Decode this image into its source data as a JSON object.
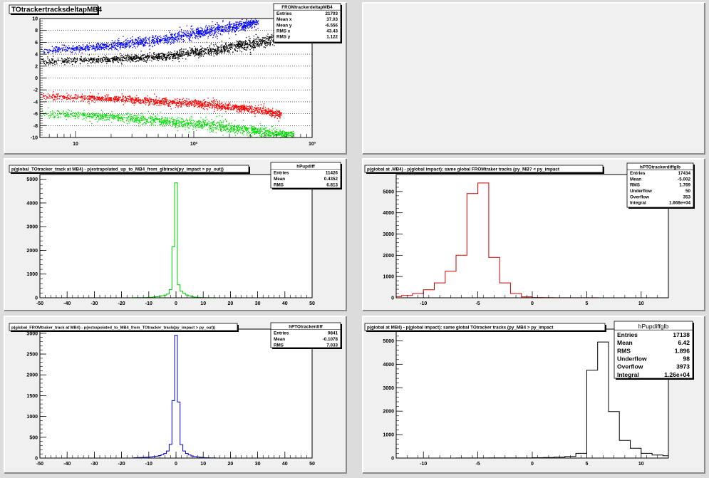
{
  "pads": [
    {
      "chart_data": {
        "type": "scatter",
        "title": "TOtrackertracksdeltapMB4",
        "xscale": "log",
        "xlim": [
          5,
          1000
        ],
        "ylim": [
          -10,
          10
        ],
        "yticks": [
          -10,
          -8,
          -6,
          -4,
          -2,
          0,
          2,
          4,
          6,
          8,
          10
        ],
        "xticks": [
          10,
          100,
          1000
        ],
        "xticklabels": [
          "10",
          "10²",
          "10³"
        ],
        "grid_y": true,
        "series": [
          {
            "color": "#0000ff",
            "band": [
              [
                5,
                4.2,
                5.0
              ],
              [
                20,
                5.0,
                6.0
              ],
              [
                60,
                6.0,
                7.3
              ],
              [
                150,
                7.5,
                8.8
              ],
              [
                350,
                8.8,
                10
              ]
            ]
          },
          {
            "color": "#000000",
            "band": [
              [
                5,
                2.4,
                3.2
              ],
              [
                20,
                2.8,
                3.6
              ],
              [
                60,
                3.3,
                4.3
              ],
              [
                150,
                4.2,
                5.4
              ],
              [
                350,
                5.2,
                6.8
              ],
              [
                500,
                6.0,
                7.4
              ]
            ]
          },
          {
            "color": "#ff0000",
            "band": [
              [
                5,
                -3.4,
                -2.6
              ],
              [
                20,
                -3.8,
                -3.0
              ],
              [
                60,
                -4.4,
                -3.4
              ],
              [
                150,
                -5.0,
                -4.0
              ],
              [
                350,
                -5.8,
                -4.8
              ],
              [
                550,
                -6.8,
                -5.6
              ]
            ]
          },
          {
            "color": "#00dd00",
            "band": [
              [
                5,
                -6.4,
                -5.4
              ],
              [
                20,
                -7.0,
                -5.9
              ],
              [
                60,
                -7.8,
                -6.6
              ],
              [
                150,
                -8.6,
                -7.2
              ],
              [
                350,
                -9.6,
                -8.3
              ],
              [
                700,
                -10,
                -9.1
              ]
            ]
          }
        ],
        "stats": {
          "name": "FROMtrackerdeltapMB4",
          "rows": [
            [
              "Entries",
              "21703"
            ],
            [
              "Mean x",
              "37.03"
            ],
            [
              "Mean y",
              "-6.556"
            ],
            [
              "RMS x",
              "43.43"
            ],
            [
              "RMS y",
              "1.122"
            ]
          ]
        }
      }
    },
    {
      "chart_data": {
        "type": "empty"
      }
    },
    {
      "chart_data": {
        "type": "histogram",
        "title": "p(global_TOtracker_track at MB4)  - p(extrapolated_up_to_MB4_from_glbtrack(py_impact > py_out))",
        "color": "#00cc00",
        "xlim": [
          -50,
          50
        ],
        "ylim": [
          0,
          5200
        ],
        "xticks": [
          -50,
          -40,
          -30,
          -20,
          -10,
          0,
          10,
          20,
          30,
          40,
          50
        ],
        "yticks": [
          0,
          1000,
          2000,
          3000,
          4000,
          5000
        ],
        "bin_width": 1,
        "bins": [
          [
            -15,
            5
          ],
          [
            -14,
            6
          ],
          [
            -13,
            7
          ],
          [
            -12,
            10
          ],
          [
            -11,
            12
          ],
          [
            -10,
            18
          ],
          [
            -9,
            25
          ],
          [
            -8,
            32
          ],
          [
            -7,
            45
          ],
          [
            -6,
            60
          ],
          [
            -5,
            80
          ],
          [
            -4,
            110
          ],
          [
            -3,
            160
          ],
          [
            -2,
            350
          ],
          [
            -1,
            2150
          ],
          [
            0,
            4850
          ],
          [
            1,
            550
          ],
          [
            2,
            280
          ],
          [
            3,
            190
          ],
          [
            4,
            120
          ],
          [
            5,
            75
          ],
          [
            6,
            50
          ],
          [
            7,
            30
          ],
          [
            8,
            20
          ],
          [
            9,
            12
          ],
          [
            10,
            8
          ],
          [
            11,
            6
          ],
          [
            12,
            4
          ],
          [
            13,
            3
          ],
          [
            14,
            2
          ]
        ],
        "stats": {
          "name": "hPupdiff",
          "rows": [
            [
              "Entries",
              "11426"
            ],
            [
              "Mean",
              "0.4352"
            ],
            [
              "RMS",
              "6.813"
            ]
          ]
        }
      }
    },
    {
      "chart_data": {
        "type": "histogram",
        "title": "p(global at .MB4)  - p(global impact): same global FROMtraker tracks (py_MB? < py_impact",
        "color": "#cc0000",
        "xlim": [
          -12.5,
          12.5
        ],
        "ylim": [
          0,
          5800
        ],
        "xticks": [
          -10,
          -5,
          0,
          5,
          10
        ],
        "yticks": [
          0,
          1000,
          2000,
          3000,
          4000,
          5000
        ],
        "bin_width": 1,
        "bins": [
          [
            -12.5,
            60
          ],
          [
            -11.5,
            110
          ],
          [
            -10.5,
            200
          ],
          [
            -9.5,
            380
          ],
          [
            -8.5,
            700
          ],
          [
            -7.5,
            1250
          ],
          [
            -6.5,
            2000
          ],
          [
            -5.5,
            4900
          ],
          [
            -4.5,
            5400
          ],
          [
            -3.5,
            1900
          ],
          [
            -2.5,
            700
          ],
          [
            -1.5,
            200
          ],
          [
            -0.5,
            40
          ],
          [
            0.5,
            15
          ],
          [
            1.5,
            8
          ],
          [
            2.5,
            5
          ],
          [
            3.5,
            3
          ],
          [
            4.5,
            2
          ],
          [
            5.5,
            2
          ],
          [
            6.5,
            1
          ]
        ],
        "stats": {
          "name": "hPTOtrackerdiffglb",
          "rows": [
            [
              "Entries",
              "17434"
            ],
            [
              "Mean",
              "-5.002"
            ],
            [
              "RMS",
              "1.769"
            ],
            [
              "Underflow",
              "50"
            ],
            [
              "Overflow",
              "353"
            ],
            [
              "Integral",
              "1.668e+04"
            ]
          ]
        }
      }
    },
    {
      "chart_data": {
        "type": "histogram",
        "title": "p(global_FROMtraker_track at MB4)  - p(extrapolated_to_MB4_from_TOtracker_track(py_impact > py_out))",
        "color": "#0000cc",
        "xlim": [
          -50,
          50
        ],
        "ylim": [
          0,
          3100
        ],
        "xticks": [
          -50,
          -40,
          -30,
          -20,
          -10,
          0,
          10,
          20,
          30,
          40,
          50
        ],
        "yticks": [
          0,
          500,
          1000,
          1500,
          2000,
          2500,
          3000
        ],
        "bin_width": 1,
        "bins": [
          [
            -15,
            8
          ],
          [
            -14,
            10
          ],
          [
            -13,
            12
          ],
          [
            -12,
            15
          ],
          [
            -11,
            18
          ],
          [
            -10,
            22
          ],
          [
            -9,
            28
          ],
          [
            -8,
            36
          ],
          [
            -7,
            45
          ],
          [
            -6,
            60
          ],
          [
            -5,
            80
          ],
          [
            -4,
            110
          ],
          [
            -3,
            170
          ],
          [
            -2,
            330
          ],
          [
            -1,
            1380
          ],
          [
            0,
            2950
          ],
          [
            1,
            1350
          ],
          [
            2,
            320
          ],
          [
            3,
            170
          ],
          [
            4,
            110
          ],
          [
            5,
            75
          ],
          [
            6,
            50
          ],
          [
            7,
            35
          ],
          [
            8,
            25
          ],
          [
            9,
            18
          ],
          [
            10,
            12
          ],
          [
            11,
            9
          ],
          [
            12,
            6
          ],
          [
            13,
            4
          ],
          [
            14,
            3
          ]
        ],
        "stats": {
          "name": "hPTOtrackerdiff",
          "rows": [
            [
              "Entries",
              "9841"
            ],
            [
              "Mean",
              "-0.1078"
            ],
            [
              "RMS",
              "7.033"
            ]
          ]
        }
      }
    },
    {
      "chart_data": {
        "type": "histogram",
        "title": "p(global at MB4)  - p(global impact): same global TOtracker tracks (py_MB4 > py_impact",
        "color": "#000000",
        "xlim": [
          -12.5,
          12.5
        ],
        "ylim": [
          0,
          5500
        ],
        "xticks": [
          -10,
          -5,
          0,
          5,
          10
        ],
        "yticks": [
          0,
          1000,
          2000,
          3000,
          4000,
          5000
        ],
        "bin_width": 1,
        "bins": [
          [
            -6.5,
            2
          ],
          [
            -5.5,
            3
          ],
          [
            -4.5,
            4
          ],
          [
            -3.5,
            5
          ],
          [
            -2.5,
            6
          ],
          [
            -1.5,
            8
          ],
          [
            -0.5,
            10
          ],
          [
            0.5,
            15
          ],
          [
            1.5,
            25
          ],
          [
            2.5,
            40
          ],
          [
            3.5,
            70
          ],
          [
            4.5,
            200
          ],
          [
            5.5,
            3750
          ],
          [
            6.5,
            4950
          ],
          [
            7.5,
            1980
          ],
          [
            8.5,
            750
          ],
          [
            9.5,
            420
          ],
          [
            10.5,
            200
          ],
          [
            11.5,
            130
          ],
          [
            12.5,
            100
          ]
        ],
        "stats": {
          "name": "hPupdiffglb",
          "big": true,
          "rows": [
            [
              "Entries",
              "17138"
            ],
            [
              "Mean",
              "6.42"
            ],
            [
              "RMS",
              "1.896"
            ],
            [
              "Underflow",
              "98"
            ],
            [
              "Overflow",
              "3973"
            ],
            [
              "Integral",
              "1.26e+04"
            ]
          ]
        }
      }
    }
  ]
}
